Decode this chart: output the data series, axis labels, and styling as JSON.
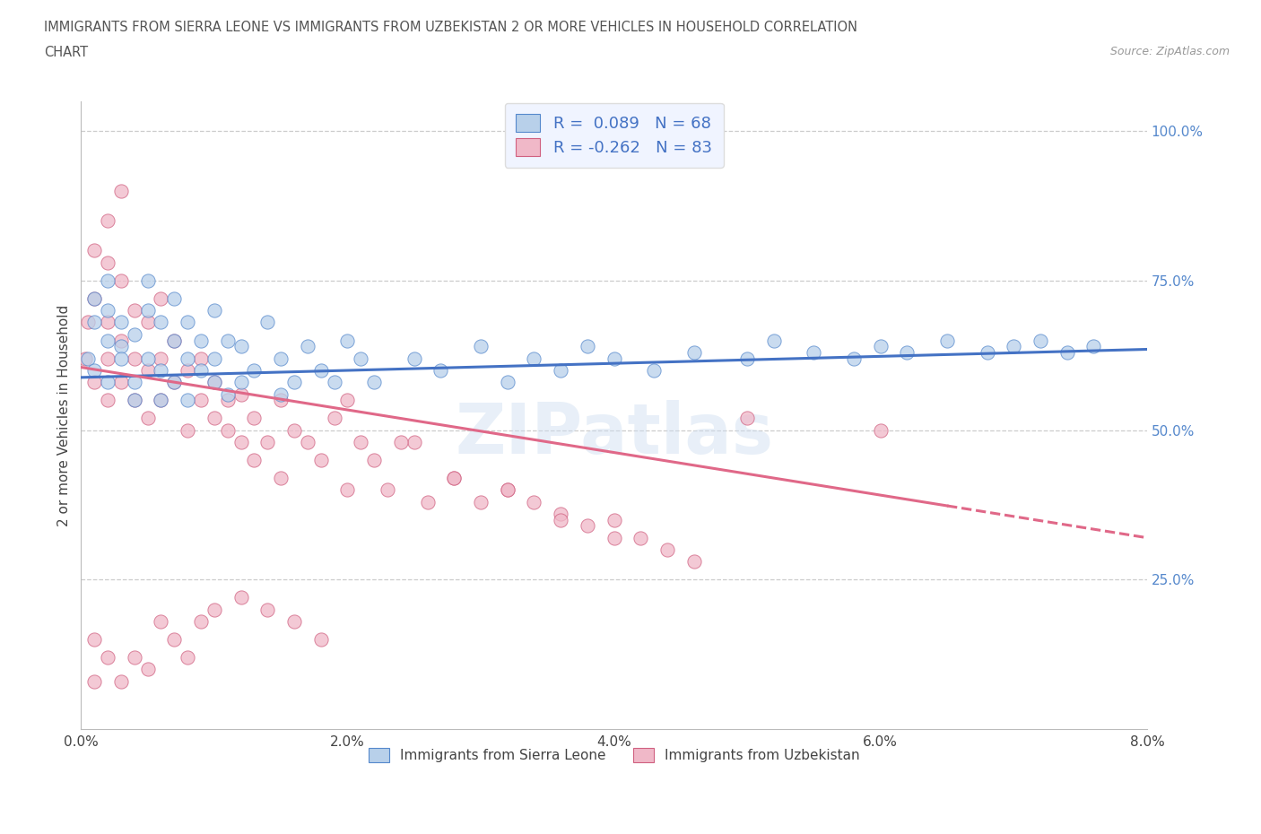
{
  "title_line1": "IMMIGRANTS FROM SIERRA LEONE VS IMMIGRANTS FROM UZBEKISTAN 2 OR MORE VEHICLES IN HOUSEHOLD CORRELATION",
  "title_line2": "CHART",
  "source": "Source: ZipAtlas.com",
  "series": [
    {
      "name": "Immigrants from Sierra Leone",
      "color": "#b8d0ea",
      "edge_color": "#5588cc",
      "line_color": "#4472c4",
      "R": 0.089,
      "N": 68,
      "x": [
        0.0005,
        0.001,
        0.001,
        0.001,
        0.002,
        0.002,
        0.002,
        0.002,
        0.003,
        0.003,
        0.003,
        0.004,
        0.004,
        0.004,
        0.005,
        0.005,
        0.005,
        0.006,
        0.006,
        0.006,
        0.007,
        0.007,
        0.007,
        0.008,
        0.008,
        0.008,
        0.009,
        0.009,
        0.01,
        0.01,
        0.01,
        0.011,
        0.011,
        0.012,
        0.012,
        0.013,
        0.014,
        0.015,
        0.015,
        0.016,
        0.017,
        0.018,
        0.019,
        0.02,
        0.021,
        0.022,
        0.025,
        0.027,
        0.03,
        0.032,
        0.034,
        0.036,
        0.038,
        0.04,
        0.043,
        0.046,
        0.05,
        0.052,
        0.055,
        0.058,
        0.06,
        0.062,
        0.065,
        0.068,
        0.07,
        0.072,
        0.074,
        0.076
      ],
      "y": [
        0.62,
        0.68,
        0.72,
        0.6,
        0.75,
        0.65,
        0.7,
        0.58,
        0.64,
        0.62,
        0.68,
        0.58,
        0.66,
        0.55,
        0.7,
        0.62,
        0.75,
        0.6,
        0.68,
        0.55,
        0.65,
        0.72,
        0.58,
        0.62,
        0.68,
        0.55,
        0.6,
        0.65,
        0.58,
        0.62,
        0.7,
        0.56,
        0.65,
        0.58,
        0.64,
        0.6,
        0.68,
        0.56,
        0.62,
        0.58,
        0.64,
        0.6,
        0.58,
        0.65,
        0.62,
        0.58,
        0.62,
        0.6,
        0.64,
        0.58,
        0.62,
        0.6,
        0.64,
        0.62,
        0.6,
        0.63,
        0.62,
        0.65,
        0.63,
        0.62,
        0.64,
        0.63,
        0.65,
        0.63,
        0.64,
        0.65,
        0.63,
        0.64
      ]
    },
    {
      "name": "Immigrants from Uzbekistan",
      "color": "#f0b8c8",
      "edge_color": "#d06080",
      "line_color": "#e06888",
      "R": -0.262,
      "N": 83,
      "x": [
        0.0003,
        0.0005,
        0.001,
        0.001,
        0.001,
        0.002,
        0.002,
        0.002,
        0.002,
        0.003,
        0.003,
        0.003,
        0.004,
        0.004,
        0.004,
        0.005,
        0.005,
        0.005,
        0.006,
        0.006,
        0.006,
        0.007,
        0.007,
        0.008,
        0.008,
        0.009,
        0.009,
        0.01,
        0.01,
        0.011,
        0.011,
        0.012,
        0.012,
        0.013,
        0.013,
        0.014,
        0.015,
        0.015,
        0.016,
        0.017,
        0.018,
        0.019,
        0.02,
        0.021,
        0.022,
        0.023,
        0.025,
        0.026,
        0.028,
        0.03,
        0.032,
        0.034,
        0.036,
        0.038,
        0.04,
        0.042,
        0.044,
        0.046,
        0.001,
        0.001,
        0.002,
        0.003,
        0.004,
        0.005,
        0.006,
        0.007,
        0.008,
        0.009,
        0.01,
        0.012,
        0.014,
        0.016,
        0.018,
        0.002,
        0.003,
        0.02,
        0.024,
        0.028,
        0.032,
        0.036,
        0.04,
        0.05,
        0.06
      ],
      "y": [
        0.62,
        0.68,
        0.8,
        0.72,
        0.58,
        0.78,
        0.68,
        0.62,
        0.55,
        0.75,
        0.58,
        0.65,
        0.7,
        0.55,
        0.62,
        0.68,
        0.52,
        0.6,
        0.62,
        0.55,
        0.72,
        0.58,
        0.65,
        0.5,
        0.6,
        0.55,
        0.62,
        0.52,
        0.58,
        0.5,
        0.55,
        0.48,
        0.56,
        0.45,
        0.52,
        0.48,
        0.55,
        0.42,
        0.5,
        0.48,
        0.45,
        0.52,
        0.4,
        0.48,
        0.45,
        0.4,
        0.48,
        0.38,
        0.42,
        0.38,
        0.4,
        0.38,
        0.36,
        0.34,
        0.35,
        0.32,
        0.3,
        0.28,
        0.15,
        0.08,
        0.12,
        0.08,
        0.12,
        0.1,
        0.18,
        0.15,
        0.12,
        0.18,
        0.2,
        0.22,
        0.2,
        0.18,
        0.15,
        0.85,
        0.9,
        0.55,
        0.48,
        0.42,
        0.4,
        0.35,
        0.32,
        0.52,
        0.5
      ]
    }
  ],
  "xlim": [
    0.0,
    0.08
  ],
  "ylim": [
    0.0,
    1.05
  ],
  "xtick_labels": [
    "0.0%",
    "2.0%",
    "4.0%",
    "6.0%",
    "8.0%"
  ],
  "xtick_vals": [
    0.0,
    0.02,
    0.04,
    0.06,
    0.08
  ],
  "ytick_right_labels": [
    "25.0%",
    "50.0%",
    "75.0%",
    "100.0%"
  ],
  "ytick_right_vals": [
    0.25,
    0.5,
    0.75,
    1.0
  ],
  "ylabel": "2 or more Vehicles in Household",
  "grid_color": "#cccccc",
  "background_color": "#ffffff",
  "marker_size": 120,
  "font_color": "#444444",
  "title_color": "#555555",
  "watermark": "ZIPatlas",
  "trend_line_blue_x0": 0.0,
  "trend_line_blue_x1": 0.08,
  "trend_line_blue_y0": 0.588,
  "trend_line_blue_y1": 0.635,
  "trend_line_pink_x0": 0.0,
  "trend_line_pink_x1": 0.08,
  "trend_line_pink_y0": 0.605,
  "trend_line_pink_y1": 0.32,
  "trend_line_pink_solid_end": 0.065,
  "trend_line_pink_dashed_end": 0.08
}
